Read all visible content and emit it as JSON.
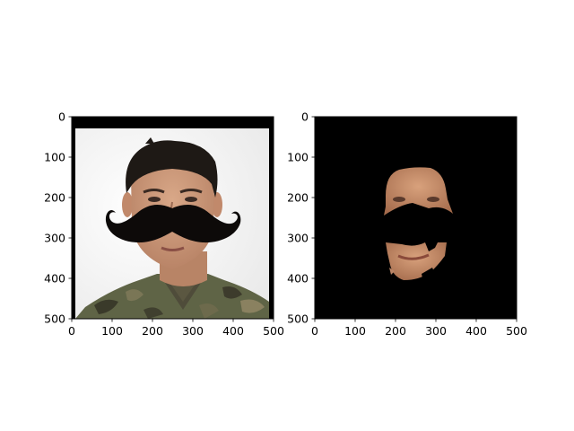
{
  "figure": {
    "background": "#ffffff"
  },
  "chart_data": [
    {
      "type": "image",
      "panel": "left",
      "content": "face-photo-with-mustache-overlay",
      "x_ticks": [
        0,
        100,
        200,
        300,
        400,
        500
      ],
      "y_ticks": [
        0,
        100,
        200,
        300,
        400,
        500
      ],
      "x_tick_labels": [
        "0",
        "100",
        "200",
        "300",
        "400",
        "500"
      ],
      "y_tick_labels": [
        "0",
        "100",
        "200",
        "300",
        "400",
        "500"
      ],
      "xlim": [
        0,
        500
      ],
      "ylim": [
        500,
        0
      ],
      "grid": false,
      "colors": {
        "border": "#000000",
        "backdrop": "#f4f4f4",
        "mustache": "#0d0a09",
        "hair": "#1e1915",
        "skin": "#c89a7e",
        "uniform": "#5f6446"
      }
    },
    {
      "type": "image",
      "panel": "right",
      "content": "masked-face-skin-region",
      "x_ticks": [
        0,
        100,
        200,
        300,
        400,
        500
      ],
      "y_ticks": [
        0,
        100,
        200,
        300,
        400,
        500
      ],
      "x_tick_labels": [
        "0",
        "100",
        "200",
        "300",
        "400",
        "500"
      ],
      "y_tick_labels": [
        "0",
        "100",
        "200",
        "300",
        "400",
        "500"
      ],
      "xlim": [
        0,
        500
      ],
      "ylim": [
        500,
        0
      ],
      "grid": false,
      "colors": {
        "background": "#000000",
        "skin": "#c98f6c",
        "skin_shadow": "#a06a4d"
      }
    }
  ]
}
